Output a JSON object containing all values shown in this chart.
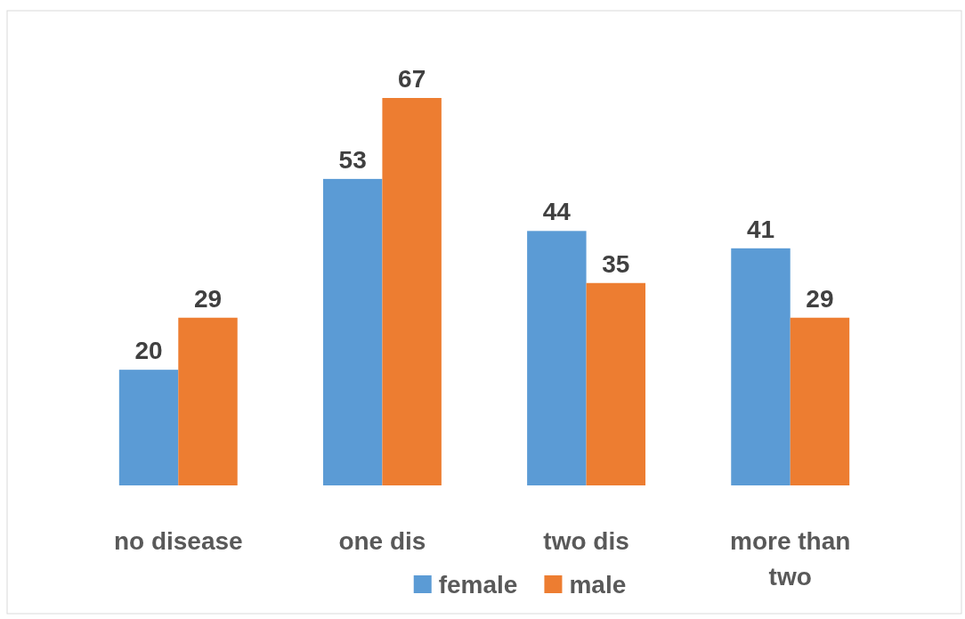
{
  "chart_data": {
    "type": "bar",
    "categories": [
      "no disease",
      "one dis",
      "two dis",
      "more than two"
    ],
    "series": [
      {
        "name": "female",
        "color": "#5b9bd5",
        "values": [
          20,
          53,
          44,
          41
        ]
      },
      {
        "name": "male",
        "color": "#ed7d31",
        "values": [
          29,
          67,
          35,
          29
        ]
      }
    ],
    "data_labels": true,
    "legend": "bottom",
    "tick_labels": "x"
  }
}
